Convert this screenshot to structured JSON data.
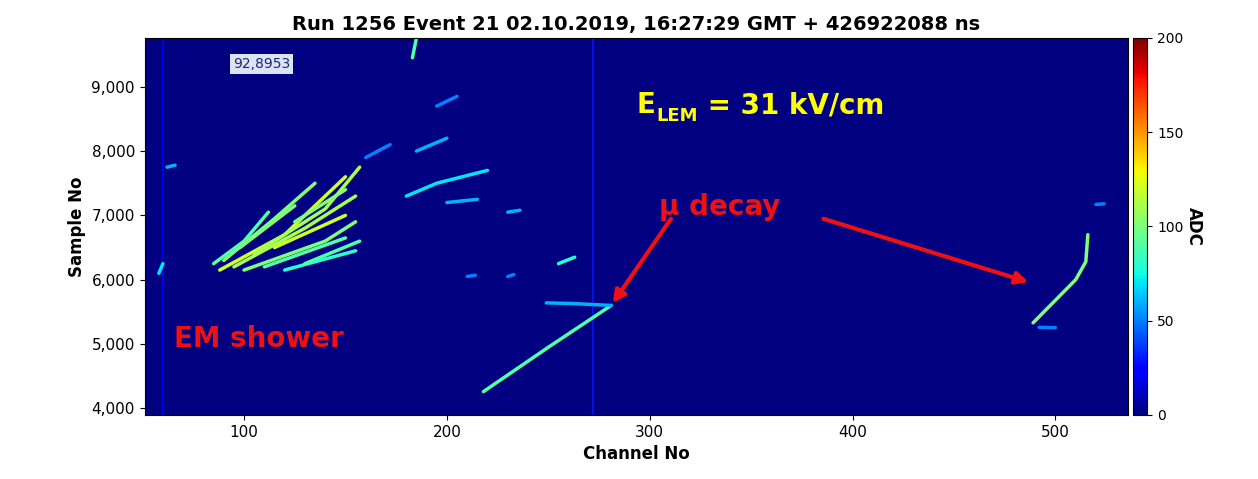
{
  "chart_data": {
    "type": "event_display",
    "title": "Run 1256 Event 21 02.10.2019, 16:27:29 GMT + 426922088 ns",
    "x_label": "Channel No",
    "y_label": "Sample No",
    "xlim": [
      51,
      536
    ],
    "xticks": [
      100,
      200,
      300,
      400,
      500
    ],
    "ylim": [
      3900,
      9760
    ],
    "yticks": [
      {
        "value": 4000,
        "label": "4,000"
      },
      {
        "value": 5000,
        "label": "5,000"
      },
      {
        "value": 6000,
        "label": "6,000"
      },
      {
        "value": 7000,
        "label": "7,000"
      },
      {
        "value": 8000,
        "label": "8,000"
      },
      {
        "value": 9000,
        "label": "9,000"
      }
    ],
    "colorbar": {
      "label": "ADC",
      "range": [
        0,
        200
      ],
      "ticks": [
        0,
        50,
        100,
        150,
        200
      ]
    },
    "background_adc": 0,
    "noisy_channels": [
      {
        "channel": 60,
        "adc": 25
      },
      {
        "channel": 272,
        "adc": 30
      }
    ],
    "tracks": [
      {
        "points": [
          [
            218,
            4260
          ],
          [
            250,
            4950
          ],
          [
            281,
            5600
          ]
        ],
        "adc": 90
      },
      {
        "points": [
          [
            281,
            5600
          ],
          [
            262,
            5630
          ],
          [
            249,
            5640
          ]
        ],
        "adc": 60
      },
      {
        "points": [
          [
            489,
            5330
          ],
          [
            510,
            6000
          ],
          [
            515,
            6280
          ],
          [
            516,
            6700
          ]
        ],
        "adc": 100
      },
      {
        "points": [
          [
            492,
            5260
          ],
          [
            500,
            5255
          ]
        ],
        "adc": 50
      },
      {
        "points": [
          [
            520,
            7170
          ],
          [
            524,
            7180
          ]
        ],
        "adc": 50
      },
      {
        "points": [
          [
            88,
            6150
          ],
          [
            120,
            6700
          ],
          [
            150,
            7600
          ]
        ],
        "adc": 120
      },
      {
        "points": [
          [
            95,
            6200
          ],
          [
            130,
            6800
          ],
          [
            155,
            7300
          ]
        ],
        "adc": 110
      },
      {
        "points": [
          [
            100,
            6150
          ],
          [
            140,
            6600
          ],
          [
            155,
            6900
          ]
        ],
        "adc": 100
      },
      {
        "points": [
          [
            110,
            6200
          ],
          [
            150,
            6650
          ]
        ],
        "adc": 90
      },
      {
        "points": [
          [
            90,
            6300
          ],
          [
            115,
            6950
          ],
          [
            135,
            7500
          ]
        ],
        "adc": 100
      },
      {
        "points": [
          [
            105,
            6400
          ],
          [
            140,
            7100
          ],
          [
            157,
            7750
          ]
        ],
        "adc": 110
      },
      {
        "points": [
          [
            85,
            6250
          ],
          [
            100,
            6600
          ],
          [
            112,
            7050
          ]
        ],
        "adc": 90
      },
      {
        "points": [
          [
            120,
            6150
          ],
          [
            155,
            6450
          ]
        ],
        "adc": 80
      },
      {
        "points": [
          [
            125,
            6900
          ],
          [
            150,
            7400
          ]
        ],
        "adc": 100
      },
      {
        "points": [
          [
            115,
            6500
          ],
          [
            150,
            7000
          ]
        ],
        "adc": 120
      },
      {
        "points": [
          [
            130,
            6250
          ],
          [
            157,
            6600
          ]
        ],
        "adc": 90
      },
      {
        "points": [
          [
            98,
            6500
          ],
          [
            125,
            7150
          ]
        ],
        "adc": 100
      },
      {
        "points": [
          [
            58,
            6100
          ],
          [
            60,
            6250
          ]
        ],
        "adc": 70
      },
      {
        "points": [
          [
            62,
            7750
          ],
          [
            66,
            7780
          ]
        ],
        "adc": 60
      },
      {
        "points": [
          [
            180,
            7300
          ],
          [
            195,
            7500
          ],
          [
            220,
            7700
          ]
        ],
        "adc": 70
      },
      {
        "points": [
          [
            200,
            7200
          ],
          [
            215,
            7250
          ]
        ],
        "adc": 60
      },
      {
        "points": [
          [
            185,
            8000
          ],
          [
            200,
            8200
          ]
        ],
        "adc": 60
      },
      {
        "points": [
          [
            195,
            8700
          ],
          [
            205,
            8850
          ]
        ],
        "adc": 50
      },
      {
        "points": [
          [
            183,
            9450
          ],
          [
            185,
            9760
          ]
        ],
        "adc": 90
      },
      {
        "points": [
          [
            160,
            7900
          ],
          [
            172,
            8100
          ]
        ],
        "adc": 50
      },
      {
        "points": [
          [
            230,
            7050
          ],
          [
            236,
            7080
          ]
        ],
        "adc": 60
      },
      {
        "points": [
          [
            255,
            6250
          ],
          [
            263,
            6350
          ]
        ],
        "adc": 80
      },
      {
        "points": [
          [
            230,
            6050
          ],
          [
            233,
            6080
          ]
        ],
        "adc": 50
      },
      {
        "points": [
          [
            210,
            6050
          ],
          [
            214,
            6070
          ]
        ],
        "adc": 50
      }
    ],
    "box_label": "92,8953",
    "field_label": {
      "symbol": "E",
      "subscript": "LEM",
      "text": " = 31 kV/cm"
    },
    "shower_label": "EM shower",
    "decay_label": {
      "text": "μ decay",
      "arrow_to": [
        [
          281,
          5600
        ],
        [
          488,
          5950
        ]
      ]
    }
  }
}
